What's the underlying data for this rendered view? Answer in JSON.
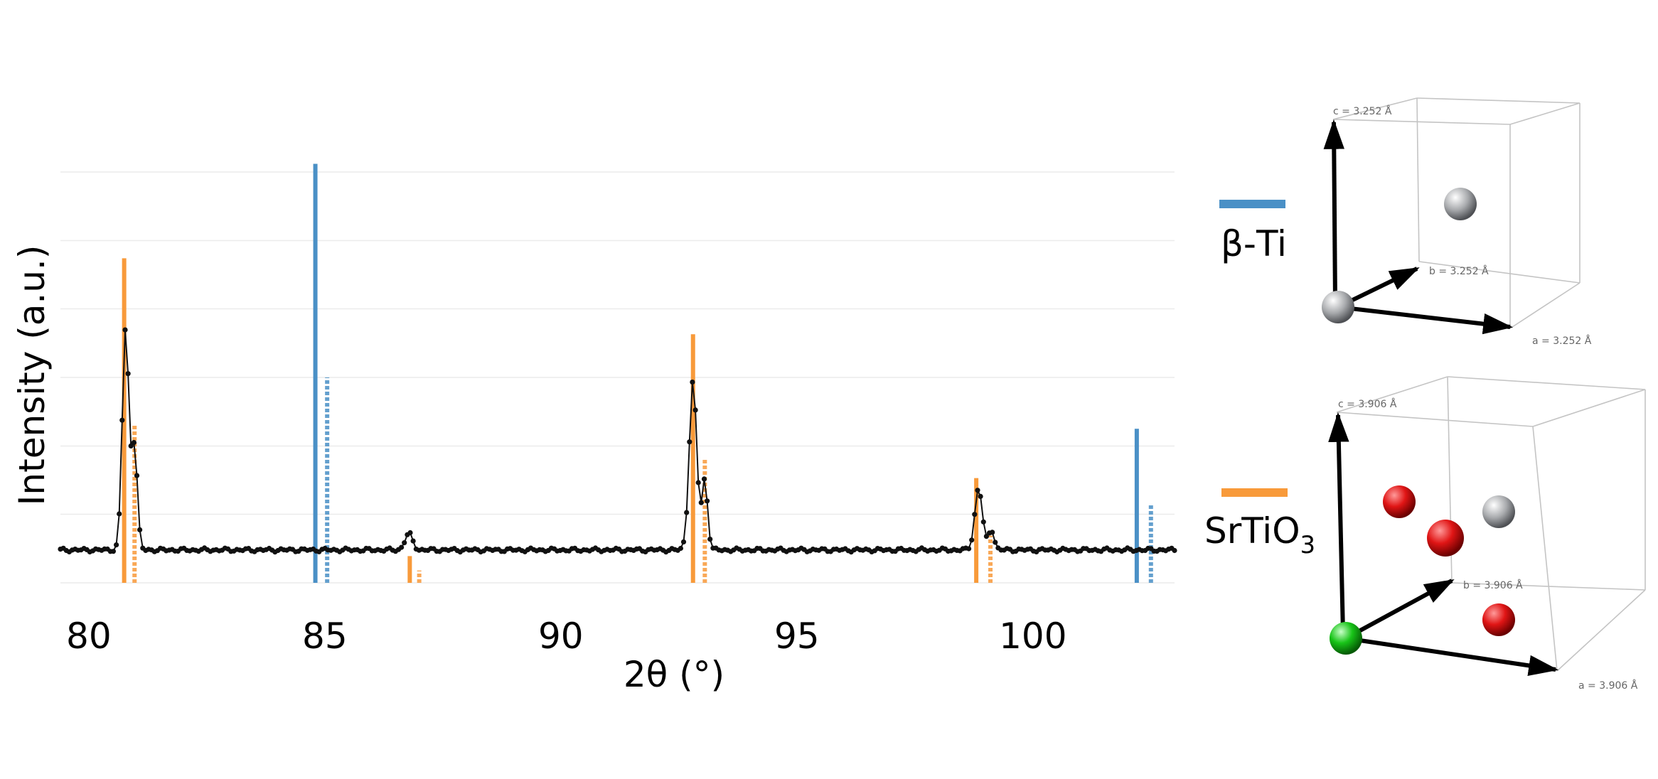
{
  "chart_data": {
    "type": "line",
    "xlabel": "2θ (°)",
    "ylabel": "Intensity (a.u.)",
    "xlim": [
      79.4,
      103
    ],
    "ylim": [
      0,
      1
    ],
    "xticks": [
      80,
      85,
      90,
      95,
      100
    ],
    "y_gridlines": [
      0,
      0.167,
      0.333,
      0.5,
      0.667,
      0.833,
      1.0
    ],
    "grid": true,
    "legend_placement": "right",
    "colors": {
      "beta_ti": "#4a90c6",
      "srtio3": "#f89a3a",
      "pattern": "#111111"
    },
    "measured_peaks": [
      {
        "center": 80.78,
        "height": 0.54,
        "width": 0.07
      },
      {
        "center": 80.97,
        "height": 0.25,
        "width": 0.06
      },
      {
        "center": 86.78,
        "height": 0.04,
        "width": 0.08
      },
      {
        "center": 92.8,
        "height": 0.41,
        "width": 0.08
      },
      {
        "center": 93.05,
        "height": 0.17,
        "width": 0.06
      },
      {
        "center": 98.85,
        "height": 0.15,
        "width": 0.08
      },
      {
        "center": 99.12,
        "height": 0.05,
        "width": 0.06
      }
    ],
    "measured_baseline": 0.08,
    "series": [
      {
        "name": "β-Ti",
        "color": "#4a90c6",
        "sticks_solid": [
          {
            "x": 84.8,
            "intensity": 1.02
          },
          {
            "x": 102.2,
            "intensity": 0.375
          }
        ],
        "sticks_dotted": [
          {
            "x": 85.05,
            "intensity": 0.5
          },
          {
            "x": 102.5,
            "intensity": 0.19
          }
        ]
      },
      {
        "name": "SrTiO",
        "name_subscript": "3",
        "color": "#f89a3a",
        "sticks_solid": [
          {
            "x": 80.75,
            "intensity": 0.79
          },
          {
            "x": 86.8,
            "intensity": 0.065
          },
          {
            "x": 92.8,
            "intensity": 0.605
          },
          {
            "x": 98.8,
            "intensity": 0.255
          }
        ],
        "sticks_dotted": [
          {
            "x": 80.97,
            "intensity": 0.385
          },
          {
            "x": 87.0,
            "intensity": 0.03
          },
          {
            "x": 93.05,
            "intensity": 0.3
          },
          {
            "x": 99.1,
            "intensity": 0.115
          }
        ]
      }
    ]
  },
  "crystals": {
    "beta_ti": {
      "label_a": "a = 3.252 Å",
      "label_b": "b = 3.252 Å",
      "label_c": "c = 3.252 Å",
      "atom_colors": [
        "#a8aaad"
      ]
    },
    "srtio3": {
      "label_a": "a = 3.906 Å",
      "label_b": "b = 3.906 Å",
      "label_c": "c = 3.906 Å",
      "atom_colors": [
        "#19c419",
        "#dd1a1a",
        "#a8aaad"
      ]
    }
  }
}
